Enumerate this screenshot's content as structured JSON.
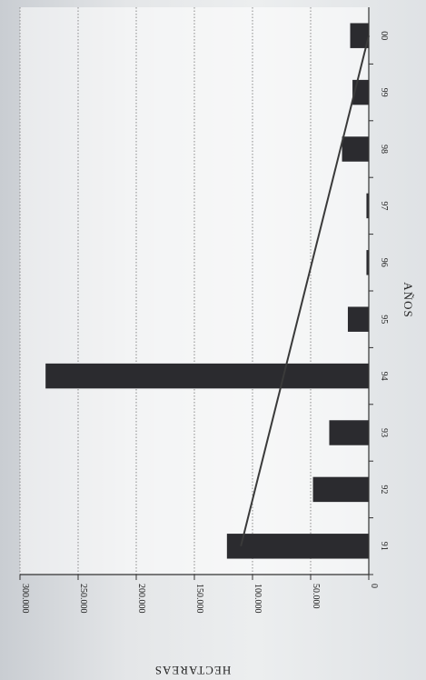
{
  "chart_data": {
    "type": "bar",
    "orientation": "rotated-180",
    "categories": [
      "91",
      "92",
      "93",
      "94",
      "95",
      "96",
      "97",
      "98",
      "99",
      "00"
    ],
    "values": [
      122000,
      48000,
      34000,
      278000,
      18000,
      2000,
      2000,
      23000,
      14000,
      16000
    ],
    "trend_line": {
      "start": 110000,
      "end": 0
    },
    "title": "",
    "xlabel": "AÑOS",
    "ylabel": "HECTAREAS",
    "ylim": [
      0,
      300000
    ],
    "y_ticks": [
      "0",
      "50.000",
      "100.000",
      "150.000",
      "200.000",
      "250.000",
      "300.000"
    ],
    "grid": true,
    "legend": "none",
    "colors": {
      "bar": "#2b2b2f",
      "grid": "#8a8a8a",
      "trend": "#3a3a3a"
    }
  }
}
